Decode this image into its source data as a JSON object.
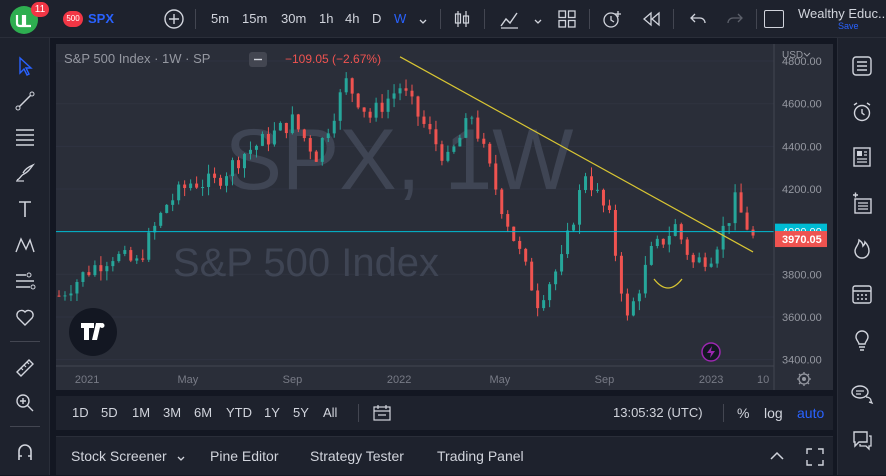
{
  "header": {
    "notification_count": "11",
    "symbol_badge": "500",
    "symbol": "SPX",
    "intervals": [
      "5m",
      "15m",
      "30m",
      "1h",
      "4h",
      "D",
      "W"
    ],
    "active_interval": "W",
    "account_name": "Wealthy Educ...",
    "save_label": "Save"
  },
  "legend": {
    "title": "S&P 500 Index · 1W · SP",
    "change": "−109.05 (−2.67%)"
  },
  "watermark": {
    "big": "SPX, 1W",
    "small": "S&P 500 Index"
  },
  "price_scale": {
    "currency": "USD",
    "labels": [
      "4800.00",
      "4600.00",
      "4400.00",
      "4200.00",
      "4000.00",
      "3970.05",
      "3800.00",
      "3600.00",
      "3400.00"
    ]
  },
  "time_scale": {
    "labels": [
      "2021",
      "May",
      "Sep",
      "2022",
      "May",
      "Sep",
      "2023",
      "10"
    ]
  },
  "bottom_toolbar": {
    "ranges": [
      "1D",
      "5D",
      "1M",
      "3M",
      "6M",
      "YTD",
      "1Y",
      "5Y",
      "All"
    ],
    "clock": "13:05:32 (UTC)",
    "percent": "%",
    "log": "log",
    "auto": "auto"
  },
  "footer": {
    "tabs": [
      "Stock Screener",
      "Pine Editor",
      "Strategy Tester",
      "Trading Panel"
    ]
  },
  "colors": {
    "up": "#26a69a",
    "down": "#ef5350",
    "accent": "#2962ff",
    "trendline": "#d8c533",
    "hline": "#00bcd4"
  },
  "chart_data": {
    "type": "candlestick",
    "symbol": "SPX",
    "interval": "1W",
    "ylim": [
      3370,
      4880
    ],
    "horizontal_line": 4000.0,
    "last_price": 3970.05,
    "trendline": {
      "start": [
        "2022-01-07",
        4820
      ],
      "end": [
        "2023-02-24",
        3905
      ]
    },
    "weekly_close_path": [
      [
        "2020-12-04",
        3700
      ],
      [
        "2021-01-08",
        3820
      ],
      [
        "2021-02-05",
        3890
      ],
      [
        "2021-03-05",
        3850
      ],
      [
        "2021-04-09",
        4130
      ],
      [
        "2021-05-07",
        4230
      ],
      [
        "2021-06-04",
        4230
      ],
      [
        "2021-07-09",
        4370
      ],
      [
        "2021-08-06",
        4440
      ],
      [
        "2021-09-03",
        4520
      ],
      [
        "2021-10-01",
        4360
      ],
      [
        "2021-11-05",
        4700
      ],
      [
        "2021-12-03",
        4540
      ],
      [
        "2022-01-07",
        4680
      ],
      [
        "2022-02-04",
        4500
      ],
      [
        "2022-03-04",
        4330
      ],
      [
        "2022-04-01",
        4545
      ],
      [
        "2022-05-06",
        4120
      ],
      [
        "2022-06-17",
        3675
      ],
      [
        "2022-07-15",
        3860
      ],
      [
        "2022-08-12",
        4280
      ],
      [
        "2022-09-09",
        4060
      ],
      [
        "2022-09-30",
        3585
      ],
      [
        "2022-10-28",
        3900
      ],
      [
        "2022-11-25",
        4025
      ],
      [
        "2022-12-16",
        3850
      ],
      [
        "2023-01-06",
        3895
      ],
      [
        "2023-01-27",
        4070
      ],
      [
        "2023-02-03",
        4140
      ],
      [
        "2023-02-24",
        3970
      ]
    ]
  }
}
